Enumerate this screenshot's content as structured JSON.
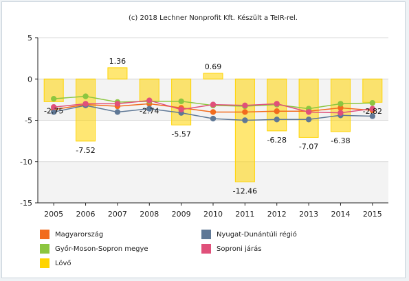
{
  "chart_data": {
    "type": "bar",
    "title": "(c) 2018 Lechner Nonprofit Kft. Készült a TeIR-rel.",
    "categories": [
      "2005",
      "2006",
      "2007",
      "2008",
      "2009",
      "2010",
      "2011",
      "2012",
      "2013",
      "2014",
      "2015"
    ],
    "ylim": [
      -15,
      5
    ],
    "y_ticks": [
      "5",
      "0",
      "-5",
      "-10",
      "-15"
    ],
    "bar_series": {
      "name": "Lövő",
      "color": "#ffd400",
      "values": [
        -2.75,
        -7.52,
        1.36,
        -2.74,
        -5.57,
        0.69,
        -12.46,
        -6.28,
        -7.07,
        -6.38,
        -2.82
      ],
      "labels": [
        "-2.75",
        "-7.52",
        "1.36",
        "-2.74",
        "-5.57",
        "0.69",
        "-12.46",
        "-6.28",
        "-7.07",
        "-6.38",
        "-2.82"
      ]
    },
    "line_series": [
      {
        "name": "Magyarország",
        "color": "#f26b1d",
        "values": [
          -3.7,
          -3.1,
          -3.3,
          -3.0,
          -3.5,
          -4.0,
          -4.0,
          -3.9,
          -3.9,
          -3.5,
          -3.8
        ]
      },
      {
        "name": "Nyugat-Dunántúli régió",
        "color": "#5f7896",
        "values": [
          -4.0,
          -3.2,
          -4.0,
          -3.6,
          -4.1,
          -4.8,
          -5.0,
          -4.9,
          -4.9,
          -4.4,
          -4.5
        ]
      },
      {
        "name": "Győr-Moson-Sopron megye",
        "color": "#8cc63f",
        "values": [
          -2.4,
          -2.1,
          -2.8,
          -2.7,
          -2.7,
          -3.2,
          -3.3,
          -3.1,
          -3.6,
          -3.0,
          -2.9
        ]
      },
      {
        "name": "Soproni járás",
        "color": "#e0507a",
        "values": [
          -3.4,
          -3.0,
          -3.0,
          -2.6,
          -3.7,
          -3.1,
          -3.2,
          -3.0,
          -4.0,
          -4.1,
          -3.6
        ]
      }
    ],
    "legend": [
      {
        "name": "Magyarország",
        "color": "#f26b1d"
      },
      {
        "name": "Nyugat-Dunántúli régió",
        "color": "#5f7896"
      },
      {
        "name": "Győr-Moson-Sopron megye",
        "color": "#8cc63f"
      },
      {
        "name": "Soproni járás",
        "color": "#e0507a"
      },
      {
        "name": "Lövő",
        "color": "#ffd400"
      }
    ],
    "legend_placement": "bottom",
    "grid": true
  }
}
